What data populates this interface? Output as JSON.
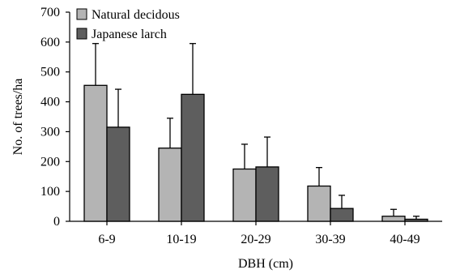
{
  "chart_data": {
    "type": "bar",
    "title": "",
    "xlabel": "DBH (cm)",
    "ylabel": "No. of trees/ha",
    "ylim": [
      0,
      700
    ],
    "yticks": [
      0,
      100,
      200,
      300,
      400,
      500,
      600,
      700
    ],
    "categories": [
      "6-9",
      "10-19",
      "20-29",
      "30-39",
      "40-49"
    ],
    "series": [
      {
        "name": "Natural decidous",
        "color": "#b4b4b4",
        "values": [
          455,
          245,
          175,
          118,
          17
        ],
        "error_upper": [
          595,
          345,
          258,
          180,
          40
        ]
      },
      {
        "name": "Japanese larch",
        "color": "#5e5e5e",
        "values": [
          315,
          425,
          182,
          43,
          7
        ],
        "error_upper": [
          442,
          595,
          282,
          87,
          17
        ]
      }
    ],
    "legend_position": "top-left",
    "grid": false,
    "error_bars": "upper"
  }
}
